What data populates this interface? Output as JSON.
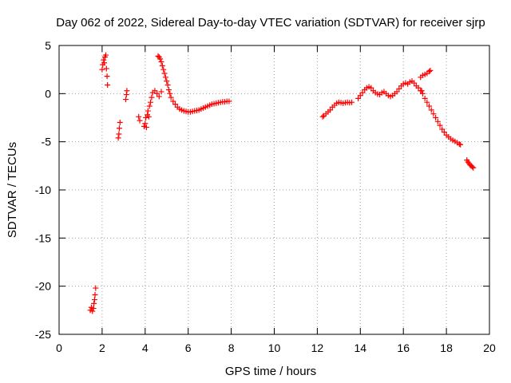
{
  "chart_data": {
    "type": "scatter",
    "title": "Day 062 of 2022, Sidereal Day-to-day VTEC variation (SDTVAR) for receiver sjrp",
    "xlabel": "GPS time / hours",
    "ylabel": "SDTVAR / TECUs",
    "xlim": [
      0,
      20
    ],
    "ylim": [
      -25,
      5
    ],
    "xticks": [
      0,
      2,
      4,
      6,
      8,
      10,
      12,
      14,
      16,
      18,
      20
    ],
    "yticks": [
      -25,
      -20,
      -15,
      -10,
      -5,
      0,
      5
    ],
    "grid": true,
    "marker": "+",
    "color": "#ff0000",
    "series": [
      {
        "name": "SDTVAR",
        "points": [
          [
            1.45,
            -22.5
          ],
          [
            1.5,
            -22.2
          ],
          [
            1.55,
            -22.6
          ],
          [
            1.6,
            -22.3
          ],
          [
            1.62,
            -21.8
          ],
          [
            1.65,
            -21.4
          ],
          [
            1.67,
            -20.9
          ],
          [
            1.7,
            -20.2
          ],
          [
            2.0,
            2.5
          ],
          [
            2.03,
            3.0
          ],
          [
            2.07,
            3.5
          ],
          [
            2.1,
            3.2
          ],
          [
            2.13,
            3.8
          ],
          [
            2.17,
            4.0
          ],
          [
            2.2,
            2.6
          ],
          [
            2.23,
            1.8
          ],
          [
            2.25,
            0.9
          ],
          [
            2.75,
            -4.6
          ],
          [
            2.78,
            -4.2
          ],
          [
            2.8,
            -3.6
          ],
          [
            2.83,
            -3.0
          ],
          [
            3.1,
            -0.6
          ],
          [
            3.13,
            -0.1
          ],
          [
            3.15,
            0.3
          ],
          [
            3.7,
            -2.4
          ],
          [
            3.75,
            -2.8
          ],
          [
            3.95,
            -3.4
          ],
          [
            4.0,
            -3.1
          ],
          [
            4.03,
            -2.5
          ],
          [
            4.06,
            -3.5
          ],
          [
            4.1,
            -2.2
          ],
          [
            4.13,
            -1.8
          ],
          [
            4.17,
            -2.4
          ],
          [
            4.2,
            -1.3
          ],
          [
            4.25,
            -0.9
          ],
          [
            4.3,
            -0.4
          ],
          [
            4.35,
            0.1
          ],
          [
            4.45,
            0.3
          ],
          [
            4.55,
            0.0
          ],
          [
            4.65,
            -0.3
          ],
          [
            4.75,
            0.2
          ],
          [
            4.6,
            3.9
          ],
          [
            4.65,
            3.8
          ],
          [
            4.7,
            3.6
          ],
          [
            4.75,
            3.3
          ],
          [
            4.8,
            2.9
          ],
          [
            4.85,
            2.5
          ],
          [
            4.9,
            2.1
          ],
          [
            4.95,
            1.7
          ],
          [
            5.0,
            1.3
          ],
          [
            5.05,
            0.9
          ],
          [
            5.1,
            0.4
          ],
          [
            5.15,
            0.0
          ],
          [
            5.2,
            -0.4
          ],
          [
            5.3,
            -0.8
          ],
          [
            5.4,
            -1.1
          ],
          [
            5.5,
            -1.4
          ],
          [
            5.6,
            -1.6
          ],
          [
            5.7,
            -1.7
          ],
          [
            5.8,
            -1.8
          ],
          [
            5.9,
            -1.85
          ],
          [
            6.0,
            -1.9
          ],
          [
            6.1,
            -1.9
          ],
          [
            6.2,
            -1.85
          ],
          [
            6.3,
            -1.8
          ],
          [
            6.4,
            -1.75
          ],
          [
            6.5,
            -1.7
          ],
          [
            6.6,
            -1.6
          ],
          [
            6.7,
            -1.5
          ],
          [
            6.8,
            -1.4
          ],
          [
            6.9,
            -1.3
          ],
          [
            7.0,
            -1.2
          ],
          [
            7.1,
            -1.1
          ],
          [
            7.2,
            -1.05
          ],
          [
            7.3,
            -1.0
          ],
          [
            7.4,
            -0.95
          ],
          [
            7.5,
            -0.9
          ],
          [
            7.6,
            -0.85
          ],
          [
            7.7,
            -0.85
          ],
          [
            7.8,
            -0.8
          ],
          [
            7.9,
            -0.8
          ],
          [
            12.25,
            -2.4
          ],
          [
            12.3,
            -2.3
          ],
          [
            12.4,
            -2.1
          ],
          [
            12.5,
            -1.9
          ],
          [
            12.6,
            -1.7
          ],
          [
            12.7,
            -1.4
          ],
          [
            12.8,
            -1.2
          ],
          [
            12.9,
            -1.0
          ],
          [
            13.0,
            -0.9
          ],
          [
            13.1,
            -0.95
          ],
          [
            13.2,
            -1.0
          ],
          [
            13.3,
            -0.95
          ],
          [
            13.4,
            -0.9
          ],
          [
            13.5,
            -0.95
          ],
          [
            13.6,
            -0.9
          ],
          [
            13.9,
            -0.5
          ],
          [
            14.0,
            -0.2
          ],
          [
            14.1,
            0.1
          ],
          [
            14.2,
            0.4
          ],
          [
            14.3,
            0.6
          ],
          [
            14.4,
            0.7
          ],
          [
            14.5,
            0.6
          ],
          [
            14.6,
            0.3
          ],
          [
            14.7,
            0.1
          ],
          [
            14.8,
            -0.05
          ],
          [
            14.9,
            -0.1
          ],
          [
            15.0,
            0.1
          ],
          [
            15.1,
            0.2
          ],
          [
            15.2,
            0.0
          ],
          [
            15.3,
            -0.2
          ],
          [
            15.4,
            -0.3
          ],
          [
            15.5,
            -0.2
          ],
          [
            15.6,
            0.0
          ],
          [
            15.7,
            0.2
          ],
          [
            15.8,
            0.5
          ],
          [
            15.9,
            0.8
          ],
          [
            16.0,
            1.0
          ],
          [
            16.1,
            1.1
          ],
          [
            16.2,
            1.0
          ],
          [
            16.3,
            1.2
          ],
          [
            16.4,
            1.3
          ],
          [
            16.5,
            1.1
          ],
          [
            16.6,
            0.8
          ],
          [
            16.7,
            0.6
          ],
          [
            16.8,
            0.3
          ],
          [
            16.8,
            1.7
          ],
          [
            16.9,
            1.9
          ],
          [
            17.0,
            2.0
          ],
          [
            17.1,
            2.1
          ],
          [
            17.2,
            2.3
          ],
          [
            17.25,
            2.4
          ],
          [
            16.85,
            0.3
          ],
          [
            16.9,
            0.0
          ],
          [
            17.0,
            -0.5
          ],
          [
            17.1,
            -0.9
          ],
          [
            17.2,
            -1.3
          ],
          [
            17.3,
            -1.7
          ],
          [
            17.4,
            -2.1
          ],
          [
            17.5,
            -2.5
          ],
          [
            17.6,
            -2.9
          ],
          [
            17.7,
            -3.3
          ],
          [
            17.8,
            -3.7
          ],
          [
            17.9,
            -4.0
          ],
          [
            18.0,
            -4.3
          ],
          [
            18.1,
            -4.5
          ],
          [
            18.2,
            -4.7
          ],
          [
            18.3,
            -4.85
          ],
          [
            18.4,
            -4.95
          ],
          [
            18.5,
            -5.1
          ],
          [
            18.6,
            -5.25
          ],
          [
            18.65,
            -5.3
          ],
          [
            18.95,
            -6.9
          ],
          [
            19.0,
            -7.1
          ],
          [
            19.05,
            -7.25
          ],
          [
            19.1,
            -7.4
          ],
          [
            19.15,
            -7.5
          ],
          [
            19.2,
            -7.6
          ],
          [
            19.25,
            -7.7
          ]
        ]
      }
    ]
  }
}
